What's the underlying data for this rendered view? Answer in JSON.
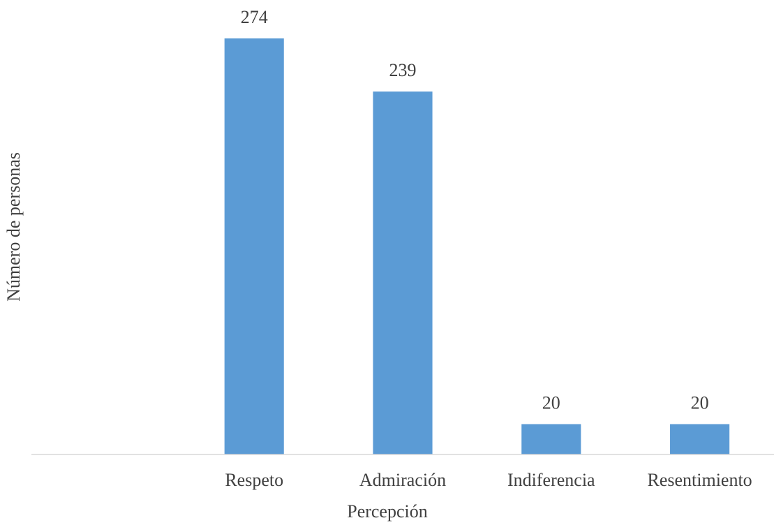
{
  "chart_data": {
    "type": "bar",
    "x_label": "Percepción",
    "y_label": "Número de personas",
    "categories": [
      null,
      "Respeto",
      "Admiración",
      "Indiferencia",
      "Resentimiento"
    ],
    "values": [
      null,
      274,
      239,
      20,
      20
    ],
    "color": "#5b9bd5",
    "ylim": [
      0,
      280
    ]
  }
}
